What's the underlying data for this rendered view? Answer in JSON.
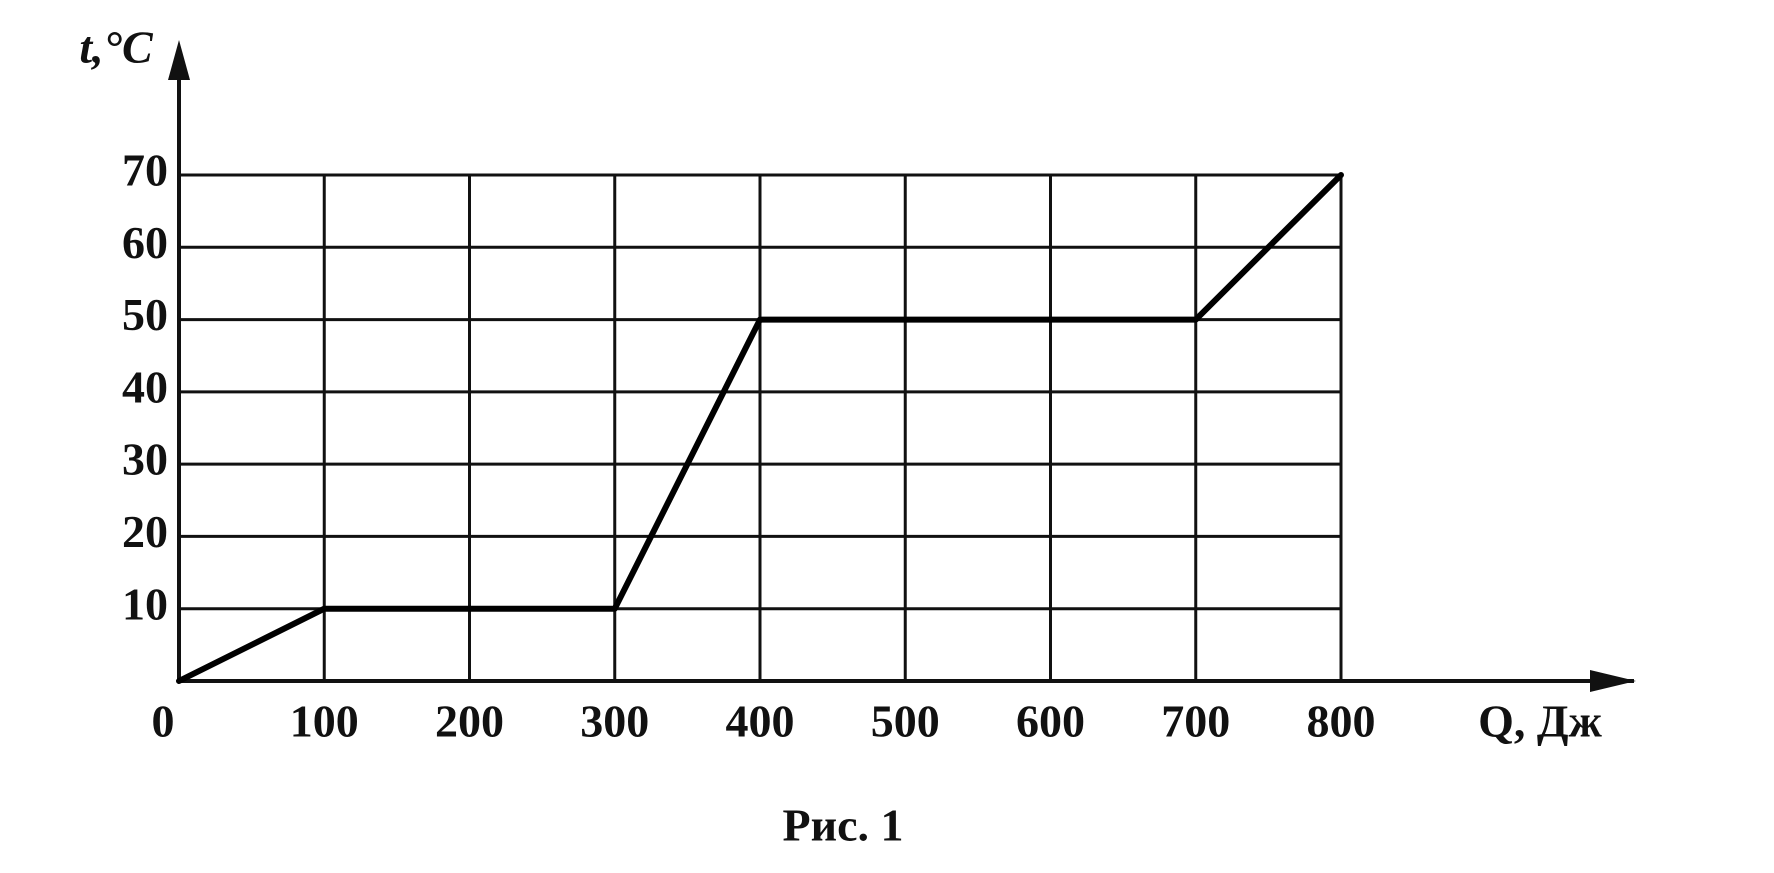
{
  "chart_data": {
    "type": "line",
    "caption": "Рис. 1",
    "y_label": "t,°C",
    "x_label": "Q, Дж",
    "x": [
      0,
      100,
      300,
      400,
      700,
      800
    ],
    "values": [
      0,
      10,
      10,
      50,
      50,
      70
    ],
    "color": "#000000",
    "xlim": [
      0,
      800
    ],
    "xticks": [
      0,
      100,
      200,
      300,
      400,
      500,
      600,
      700,
      800
    ],
    "ylim": [
      0,
      70
    ],
    "yticks": [
      10,
      20,
      30,
      40,
      50,
      60,
      70
    ],
    "grid": true
  }
}
